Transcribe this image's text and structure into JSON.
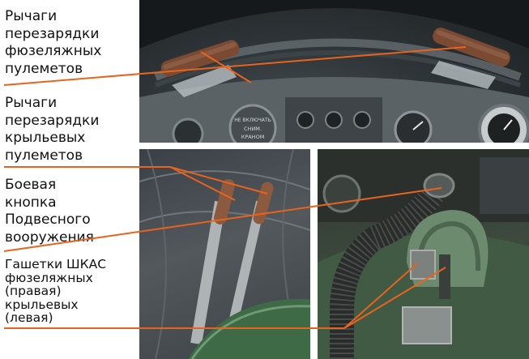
{
  "labels": {
    "fuselage_mg_levers": [
      "Рычаги",
      "перезарядки",
      "фюзеляжных",
      "пулеметов"
    ],
    "wing_mg_levers": [
      "Рычаги",
      "перезарядки",
      "крыльевых",
      "пулеметов"
    ],
    "bomb_button": [
      "Боевая",
      "кнопка",
      "Подвесного",
      "вооружения"
    ],
    "shkas_triggers": [
      "Гашетки ШКАС",
      "фюзеляжных",
      "(правая)",
      "крыльевых",
      "(левая)"
    ]
  },
  "gauge_texts": {
    "placard": [
      "НЕ ВКЛЮЧАТЬ",
      "СНИМ.",
      "КРАНОМ"
    ]
  },
  "colors": {
    "callout_line": "#e8641e",
    "text": "#111111",
    "background": "#ffffff"
  }
}
